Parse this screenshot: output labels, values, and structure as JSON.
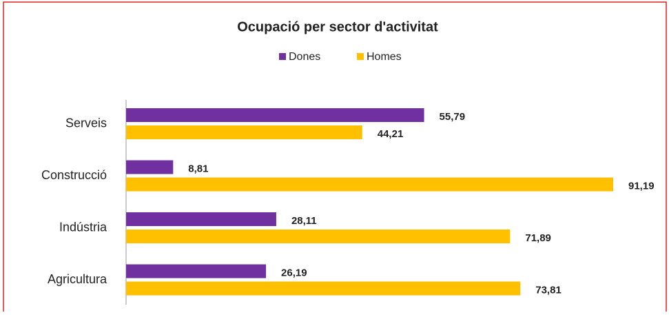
{
  "chart_data": {
    "type": "bar",
    "orientation": "horizontal",
    "title": "Ocupació per sector d'activitat",
    "categories": [
      "Serveis",
      "Construcció",
      "Indústria",
      "Agricultura"
    ],
    "series": [
      {
        "name": "Dones",
        "color": "#7030a0",
        "values": [
          55.79,
          8.81,
          28.11,
          26.19
        ],
        "value_labels": [
          "55,79",
          "8,81",
          "28,11",
          "26,19"
        ]
      },
      {
        "name": "Homes",
        "color": "#ffc000",
        "values": [
          44.21,
          91.19,
          71.89,
          73.81
        ],
        "value_labels": [
          "44,21",
          "91,19",
          "71,89",
          "73,81"
        ]
      }
    ],
    "legend": "top"
  }
}
